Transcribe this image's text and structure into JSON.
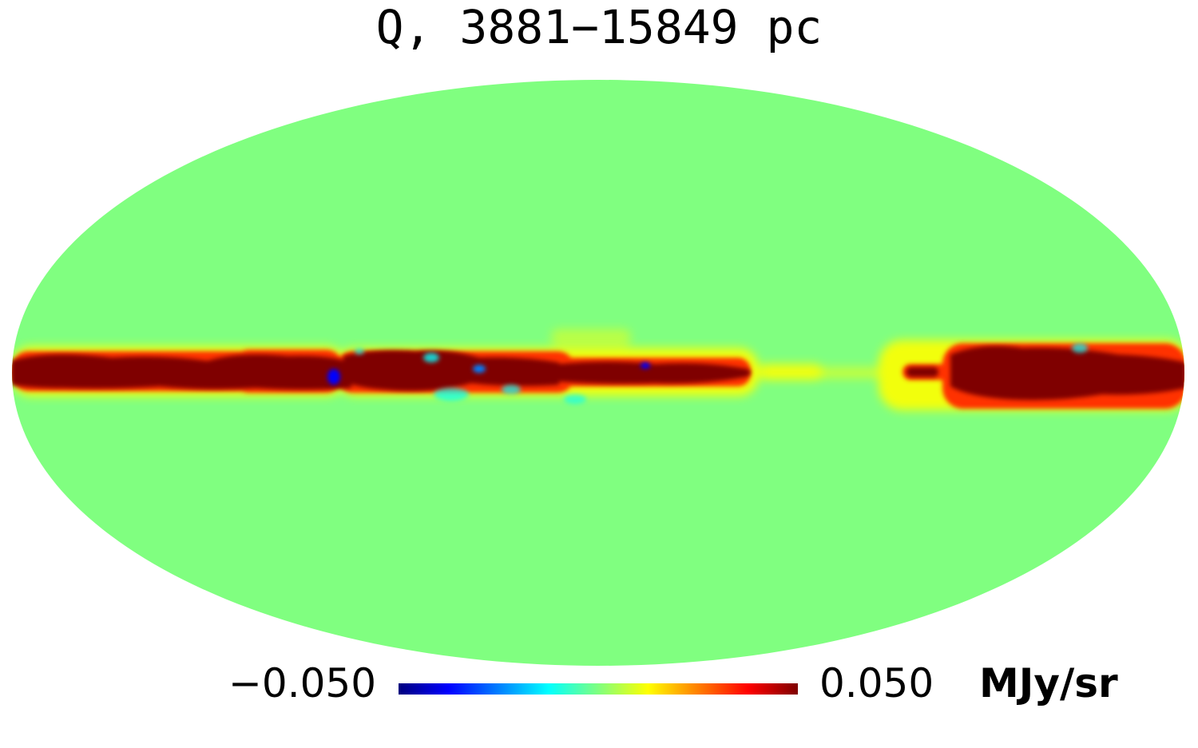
{
  "title": "Q, 3881−15849 pc",
  "colorbar": {
    "min_label": "−0.050",
    "max_label": "0.050",
    "unit": "MJy/sr",
    "colors": [
      "#00007f",
      "#0000ff",
      "#007fff",
      "#00ffff",
      "#7fff7f",
      "#ffff00",
      "#ff7f00",
      "#ff0000",
      "#7f0000"
    ]
  },
  "map": {
    "projection": "mollweide",
    "background_color": "#80ff80",
    "saturated_color": "#7f0000"
  }
}
